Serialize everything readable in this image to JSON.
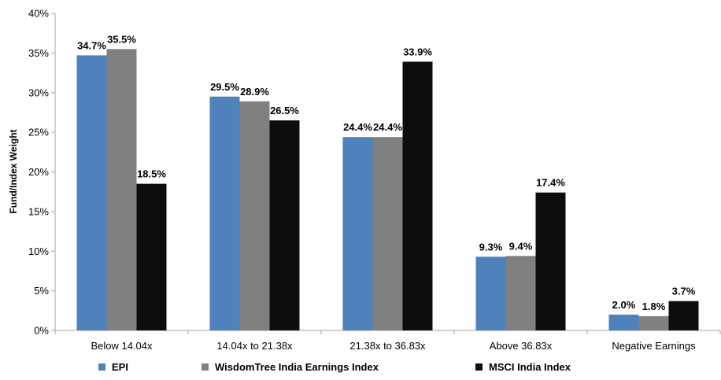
{
  "chart_data": {
    "type": "bar",
    "categories": [
      "Below 14.04x",
      "14.04x to 21.38x",
      "21.38x to 36.83x",
      "Above 36.83x",
      "Negative Earnings"
    ],
    "series": [
      {
        "name": "EPI",
        "values": [
          34.7,
          29.5,
          24.4,
          9.3,
          2.0
        ],
        "labels": [
          "34.7%",
          "29.5%",
          "24.4%",
          "9.3%",
          "2.0%"
        ],
        "color": "#4f81bd"
      },
      {
        "name": "WisdomTree India Earnings Index",
        "values": [
          35.5,
          28.9,
          24.4,
          9.4,
          1.8
        ],
        "labels": [
          "35.5%",
          "28.9%",
          "24.4%",
          "9.4%",
          "1.8%"
        ],
        "color": "#808080"
      },
      {
        "name": "MSCI India Index",
        "values": [
          18.5,
          26.5,
          33.9,
          17.4,
          3.7
        ],
        "labels": [
          "18.5%",
          "26.5%",
          "33.9%",
          "17.4%",
          "3.7%"
        ],
        "color": "#0d0d0d"
      }
    ],
    "ylabel": "Fund/Index Weight",
    "ylim": [
      0,
      40
    ],
    "yticks": [
      "0%",
      "5%",
      "10%",
      "15%",
      "20%",
      "25%",
      "30%",
      "35%",
      "40%"
    ],
    "ytick_values": [
      0,
      5,
      10,
      15,
      20,
      25,
      30,
      35,
      40
    ],
    "grid": false,
    "legend_position": "bottom"
  }
}
